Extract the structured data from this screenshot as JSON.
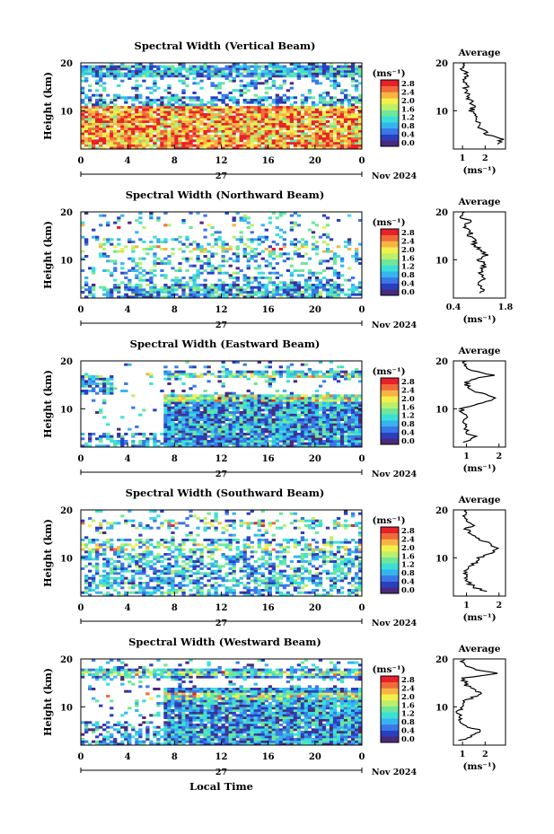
{
  "figure": {
    "month_label": "Nov 2024",
    "xlabel": "Local Time",
    "ylabel": "Height (km)",
    "units": "(ms⁻¹)",
    "avg_title": "Average",
    "colorbar_ticks": [
      "0.0",
      "0.4",
      "0.8",
      "1.2",
      "1.6",
      "2.0",
      "2.4",
      "2.8"
    ],
    "colorbar_colors": [
      "#4a2a7a",
      "#2a3fbf",
      "#3a78e8",
      "#36b4f0",
      "#3ae0d8",
      "#6fe79a",
      "#bdf06a",
      "#f3f04c",
      "#f7b445",
      "#f06a3a",
      "#e8202a"
    ]
  },
  "chart_data": [
    {
      "type": "heatmap",
      "title": "Spectral Width (Vertical Beam)",
      "xlabel": "Local Time",
      "ylabel": "Height (km)",
      "x_ticks": [
        "0",
        "4",
        "8",
        "12",
        "16",
        "20",
        "0"
      ],
      "y_ticks": [
        "20",
        "10"
      ],
      "xlim": [
        0,
        24
      ],
      "ylim": [
        2,
        20
      ],
      "day_label": "27",
      "colorbar_label": "(ms⁻¹)",
      "colorbar_ticks": [
        "0.0",
        "0.4",
        "0.8",
        "1.2",
        "1.6",
        "2.0",
        "2.4",
        "2.8"
      ],
      "dominant": "high widths (red/orange) below 10 km, blue above, layer near 18 km",
      "average_profile": {
        "title": "Average",
        "xlabel": "(ms⁻¹)",
        "x_ticks": [
          "1",
          "2"
        ],
        "xlim": [
          0.6,
          2.9
        ],
        "y_ticks": [
          "20",
          "10"
        ],
        "height_km": [
          3,
          4,
          5,
          6,
          7,
          8,
          9,
          10,
          11,
          12,
          13,
          14,
          15,
          16,
          17,
          18,
          19,
          20
        ],
        "width": [
          2.6,
          2.7,
          2.1,
          1.9,
          1.7,
          1.6,
          1.5,
          1.4,
          1.5,
          1.35,
          1.25,
          1.2,
          1.15,
          1.1,
          1.2,
          1.1,
          1.0,
          1.1
        ]
      }
    },
    {
      "type": "heatmap",
      "title": "Spectral Width (Northward Beam)",
      "xlabel": "Local Time",
      "ylabel": "Height (km)",
      "x_ticks": [
        "0",
        "4",
        "8",
        "12",
        "16",
        "20",
        "0"
      ],
      "y_ticks": [
        "20",
        "10"
      ],
      "xlim": [
        0,
        24
      ],
      "ylim": [
        2,
        20
      ],
      "day_label": "27",
      "colorbar_label": "(ms⁻¹)",
      "colorbar_ticks": [
        "0.0",
        "0.4",
        "0.8",
        "1.2",
        "1.6",
        "2.0",
        "2.4",
        "2.8"
      ],
      "dominant": "sparse blue returns, scattered red between 6-12 km",
      "average_profile": {
        "title": "Average",
        "xlabel": "(ms⁻¹)",
        "x_ticks": [
          "0.4",
          "1.8"
        ],
        "xlim": [
          0.4,
          1.8
        ],
        "y_ticks": [
          "20",
          "10"
        ],
        "height_km": [
          3,
          4,
          5,
          6,
          7,
          8,
          9,
          10,
          11,
          12,
          13,
          14,
          15,
          16,
          17,
          18,
          19,
          20
        ],
        "width": [
          1.1,
          1.2,
          1.0,
          1.3,
          1.1,
          1.2,
          1.25,
          1.05,
          1.3,
          1.15,
          0.95,
          1.0,
          0.8,
          0.9,
          0.7,
          0.85,
          0.6,
          0.7
        ]
      }
    },
    {
      "type": "heatmap",
      "title": "Spectral Width (Eastward Beam)",
      "xlabel": "Local Time",
      "ylabel": "Height (km)",
      "x_ticks": [
        "0",
        "4",
        "8",
        "12",
        "16",
        "20",
        "0"
      ],
      "y_ticks": [
        "20",
        "10"
      ],
      "xlim": [
        0,
        24
      ],
      "ylim": [
        2,
        20
      ],
      "day_label": "27",
      "colorbar_label": "(ms⁻¹)",
      "colorbar_ticks": [
        "0.0",
        "0.4",
        "0.8",
        "1.2",
        "1.6",
        "2.0",
        "2.4",
        "2.8"
      ],
      "dominant": "blue dominated from 7 h onward, red band near 12 km and 17 km",
      "average_profile": {
        "title": "Average",
        "xlabel": "(ms⁻¹)",
        "x_ticks": [
          "1",
          "2"
        ],
        "xlim": [
          0.6,
          2.2
        ],
        "y_ticks": [
          "20",
          "10"
        ],
        "height_km": [
          3,
          4,
          5,
          6,
          7,
          8,
          9,
          10,
          11,
          12,
          13,
          14,
          15,
          16,
          17,
          18,
          19,
          20
        ],
        "width": [
          0.9,
          1.3,
          1.0,
          0.95,
          0.9,
          0.95,
          0.9,
          0.85,
          1.4,
          1.9,
          1.6,
          1.1,
          1.0,
          1.05,
          1.8,
          1.2,
          0.9,
          1.0
        ]
      }
    },
    {
      "type": "heatmap",
      "title": "Spectral Width (Southward Beam)",
      "xlabel": "Local Time",
      "ylabel": "Height (km)",
      "x_ticks": [
        "0",
        "4",
        "8",
        "12",
        "16",
        "20",
        "0"
      ],
      "y_ticks": [
        "20",
        "10"
      ],
      "xlim": [
        0,
        24
      ],
      "ylim": [
        2,
        20
      ],
      "day_label": "27",
      "colorbar_label": "(ms⁻¹)",
      "colorbar_ticks": [
        "0.0",
        "0.4",
        "0.8",
        "1.2",
        "1.6",
        "2.0",
        "2.4",
        "2.8"
      ],
      "dominant": "patchy blue columns, red/orange 8-13 km",
      "average_profile": {
        "title": "Average",
        "xlabel": "(ms⁻¹)",
        "x_ticks": [
          "1",
          "2"
        ],
        "xlim": [
          0.6,
          2.2
        ],
        "y_ticks": [
          "20",
          "10"
        ],
        "height_km": [
          3,
          4,
          5,
          6,
          7,
          8,
          9,
          10,
          11,
          12,
          13,
          14,
          15,
          16,
          17,
          18,
          19,
          20
        ],
        "width": [
          1.6,
          1.2,
          1.0,
          0.95,
          1.0,
          1.1,
          1.3,
          1.4,
          1.8,
          2.0,
          1.7,
          1.3,
          1.1,
          1.0,
          1.2,
          1.0,
          0.9,
          1.0
        ]
      }
    },
    {
      "type": "heatmap",
      "title": "Spectral Width (Westward Beam)",
      "xlabel": "Local Time",
      "ylabel": "Height (km)",
      "x_ticks": [
        "0",
        "4",
        "8",
        "12",
        "16",
        "20",
        "0"
      ],
      "y_ticks": [
        "20",
        "10"
      ],
      "xlim": [
        0,
        24
      ],
      "ylim": [
        2,
        20
      ],
      "day_label": "27",
      "colorbar_label": "(ms⁻¹)",
      "colorbar_ticks": [
        "0.0",
        "0.4",
        "0.8",
        "1.2",
        "1.6",
        "2.0",
        "2.4",
        "2.8"
      ],
      "dominant": "blue dominated, red layer near 17 km and near 12 km",
      "average_profile": {
        "title": "Average",
        "xlabel": "(ms⁻¹)",
        "x_ticks": [
          "1",
          "2"
        ],
        "xlim": [
          0.6,
          2.9
        ],
        "y_ticks": [
          "20",
          "10"
        ],
        "height_km": [
          3,
          4,
          5,
          6,
          7,
          8,
          9,
          10,
          11,
          12,
          13,
          14,
          15,
          16,
          17,
          18,
          19,
          20
        ],
        "width": [
          0.9,
          1.5,
          1.8,
          1.1,
          0.95,
          0.9,
          0.85,
          0.9,
          1.0,
          1.5,
          1.8,
          1.3,
          1.1,
          1.0,
          2.6,
          1.4,
          1.0,
          1.1
        ]
      }
    }
  ]
}
